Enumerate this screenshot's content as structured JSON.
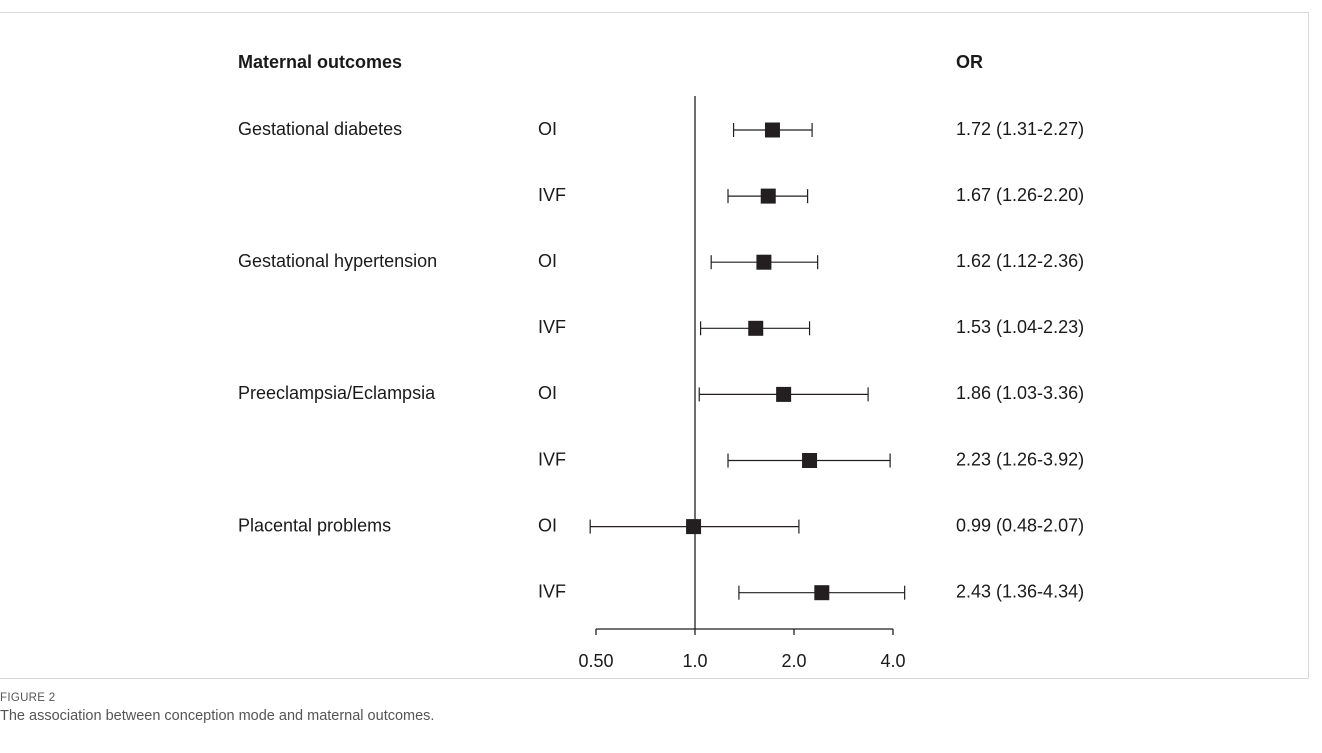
{
  "figure": {
    "label": "FIGURE 2",
    "caption": "The association between conception mode and maternal outcomes."
  },
  "chart_data": {
    "type": "forest",
    "header_outcome": "Maternal outcomes",
    "header_or": "OR",
    "x_scale": "log2",
    "xlim": [
      0.5,
      4.0
    ],
    "xticks": [
      {
        "value": 0.5,
        "label": "0.50"
      },
      {
        "value": 1.0,
        "label": "1.0"
      },
      {
        "value": 2.0,
        "label": "2.0"
      },
      {
        "value": 4.0,
        "label": "4.0"
      }
    ],
    "reference_line": 1.0,
    "rows": [
      {
        "outcome": "Gestational diabetes",
        "mode": "OI",
        "or": 1.72,
        "lo": 1.31,
        "hi": 2.27,
        "or_text": "1.72 (1.31-2.27)"
      },
      {
        "outcome": "",
        "mode": "IVF",
        "or": 1.67,
        "lo": 1.26,
        "hi": 2.2,
        "or_text": "1.67 (1.26-2.20)"
      },
      {
        "outcome": "Gestational hypertension",
        "mode": "OI",
        "or": 1.62,
        "lo": 1.12,
        "hi": 2.36,
        "or_text": "1.62 (1.12-2.36)"
      },
      {
        "outcome": "",
        "mode": "IVF",
        "or": 1.53,
        "lo": 1.04,
        "hi": 2.23,
        "or_text": "1.53 (1.04-2.23)"
      },
      {
        "outcome": "Preeclampsia/Eclampsia",
        "mode": "OI",
        "or": 1.86,
        "lo": 1.03,
        "hi": 3.36,
        "or_text": "1.86 (1.03-3.36)"
      },
      {
        "outcome": "",
        "mode": "IVF",
        "or": 2.23,
        "lo": 1.26,
        "hi": 3.92,
        "or_text": "2.23 (1.26-3.92)"
      },
      {
        "outcome": "Placental problems",
        "mode": "OI",
        "or": 0.99,
        "lo": 0.48,
        "hi": 2.07,
        "or_text": "0.99 (0.48-2.07)"
      },
      {
        "outcome": "",
        "mode": "IVF",
        "or": 2.43,
        "lo": 1.36,
        "hi": 4.34,
        "or_text": "2.43 (1.36-4.34)"
      }
    ],
    "colors": {
      "marker": "#231f20",
      "line": "#231f20",
      "text": "#1a1a1a"
    }
  }
}
